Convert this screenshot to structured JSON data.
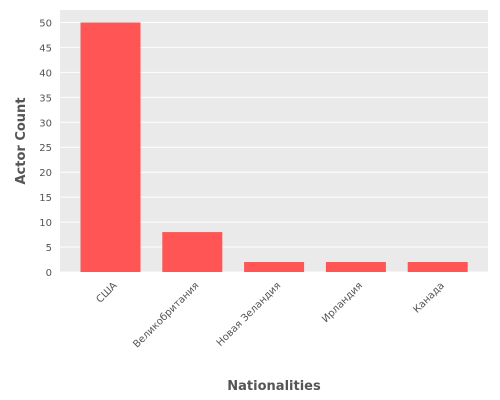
{
  "chart_data": {
    "type": "bar",
    "title": "",
    "xlabel": "Nationalities",
    "ylabel": "Actor Count",
    "categories": [
      "США",
      "Великобритания",
      "Новая Зеландия",
      "Ирландия",
      "Канада"
    ],
    "values": [
      50,
      8,
      2,
      2,
      2
    ],
    "ylim": [
      0,
      52.5
    ],
    "yticks": [
      0,
      5,
      10,
      15,
      20,
      25,
      30,
      35,
      40,
      45,
      50
    ],
    "grid": true,
    "legend": "none",
    "colors": {
      "bar": "#ff5555",
      "background": "#eaeaea",
      "grid": "#ffffff",
      "text": "#555555"
    }
  }
}
